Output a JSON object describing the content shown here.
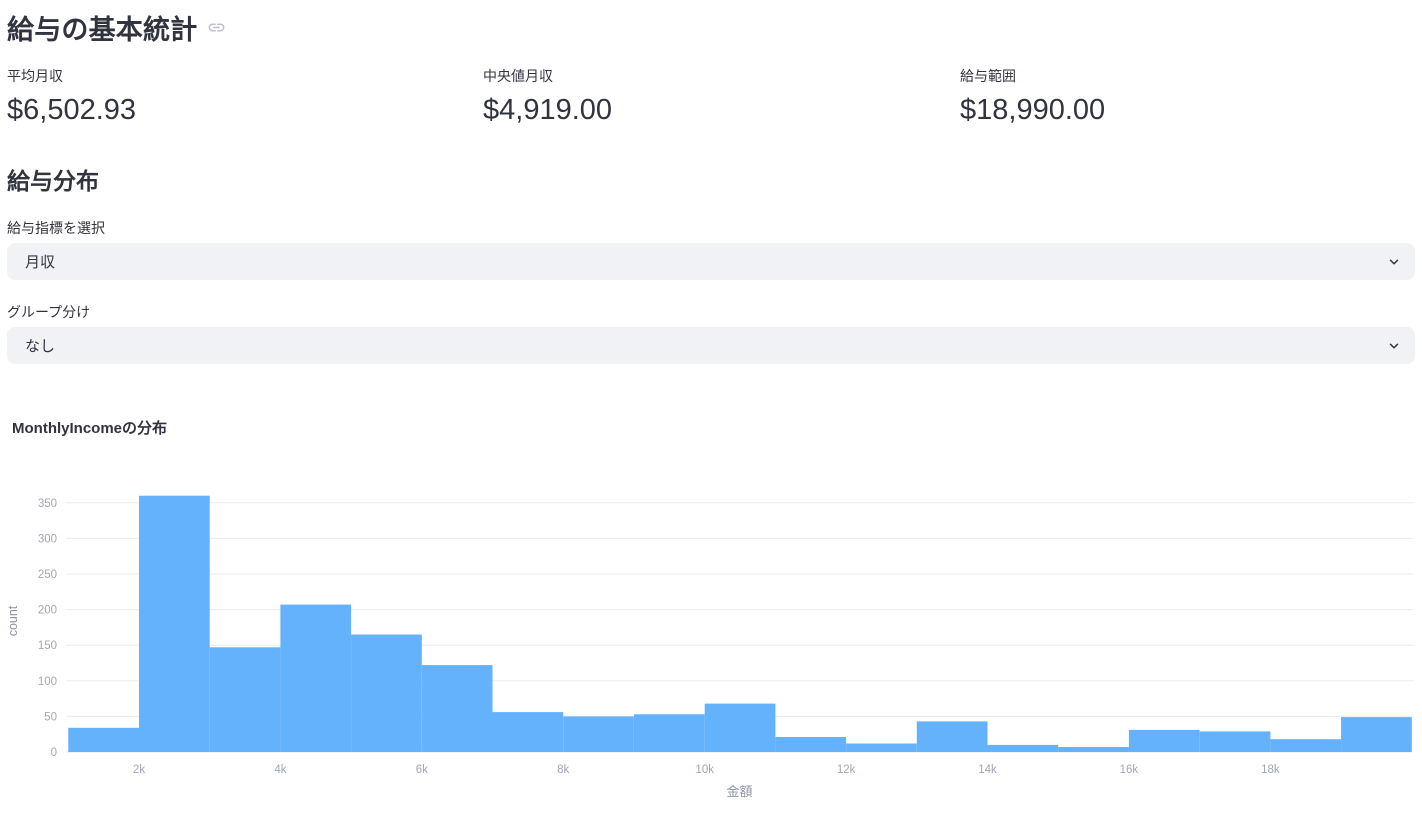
{
  "header": {
    "title": "給与の基本統計",
    "anchor_icon": "link-icon"
  },
  "metrics": [
    {
      "label": "平均月収",
      "value": "$6,502.93"
    },
    {
      "label": "中央値月収",
      "value": "$4,919.00"
    },
    {
      "label": "給与範囲",
      "value": "$18,990.00"
    }
  ],
  "distribution_section": {
    "title": "給与分布",
    "metric_select": {
      "label": "給与指標を選択",
      "value": "月収"
    },
    "group_select": {
      "label": "グループ分け",
      "value": "なし"
    }
  },
  "chart_data": {
    "type": "bar",
    "title": "MonthlyIncomeの分布",
    "xlabel": "金額",
    "ylabel": "count",
    "bin_width": 1000,
    "bin_start": [
      1000,
      2000,
      3000,
      4000,
      5000,
      6000,
      7000,
      8000,
      9000,
      10000,
      11000,
      12000,
      13000,
      14000,
      15000,
      16000,
      17000,
      18000,
      19000
    ],
    "values": [
      34,
      360,
      147,
      207,
      165,
      122,
      56,
      50,
      53,
      68,
      21,
      12,
      43,
      10,
      7,
      31,
      29,
      18,
      49
    ],
    "x_tick_values": [
      2000,
      4000,
      6000,
      8000,
      10000,
      12000,
      14000,
      16000,
      18000
    ],
    "x_tick_labels": [
      "2k",
      "4k",
      "6k",
      "8k",
      "10k",
      "12k",
      "14k",
      "16k",
      "18k"
    ],
    "y_ticks": [
      0,
      50,
      100,
      150,
      200,
      250,
      300,
      350
    ],
    "xlim": [
      968,
      20017
    ],
    "ylim": [
      0,
      368
    ],
    "grid": true,
    "legend": "none",
    "colors": {
      "bar": "#64b2fb",
      "grid": "#e9ebf1",
      "tick_label": "#a1a7b4",
      "axis_title": "#8d93a0"
    }
  }
}
